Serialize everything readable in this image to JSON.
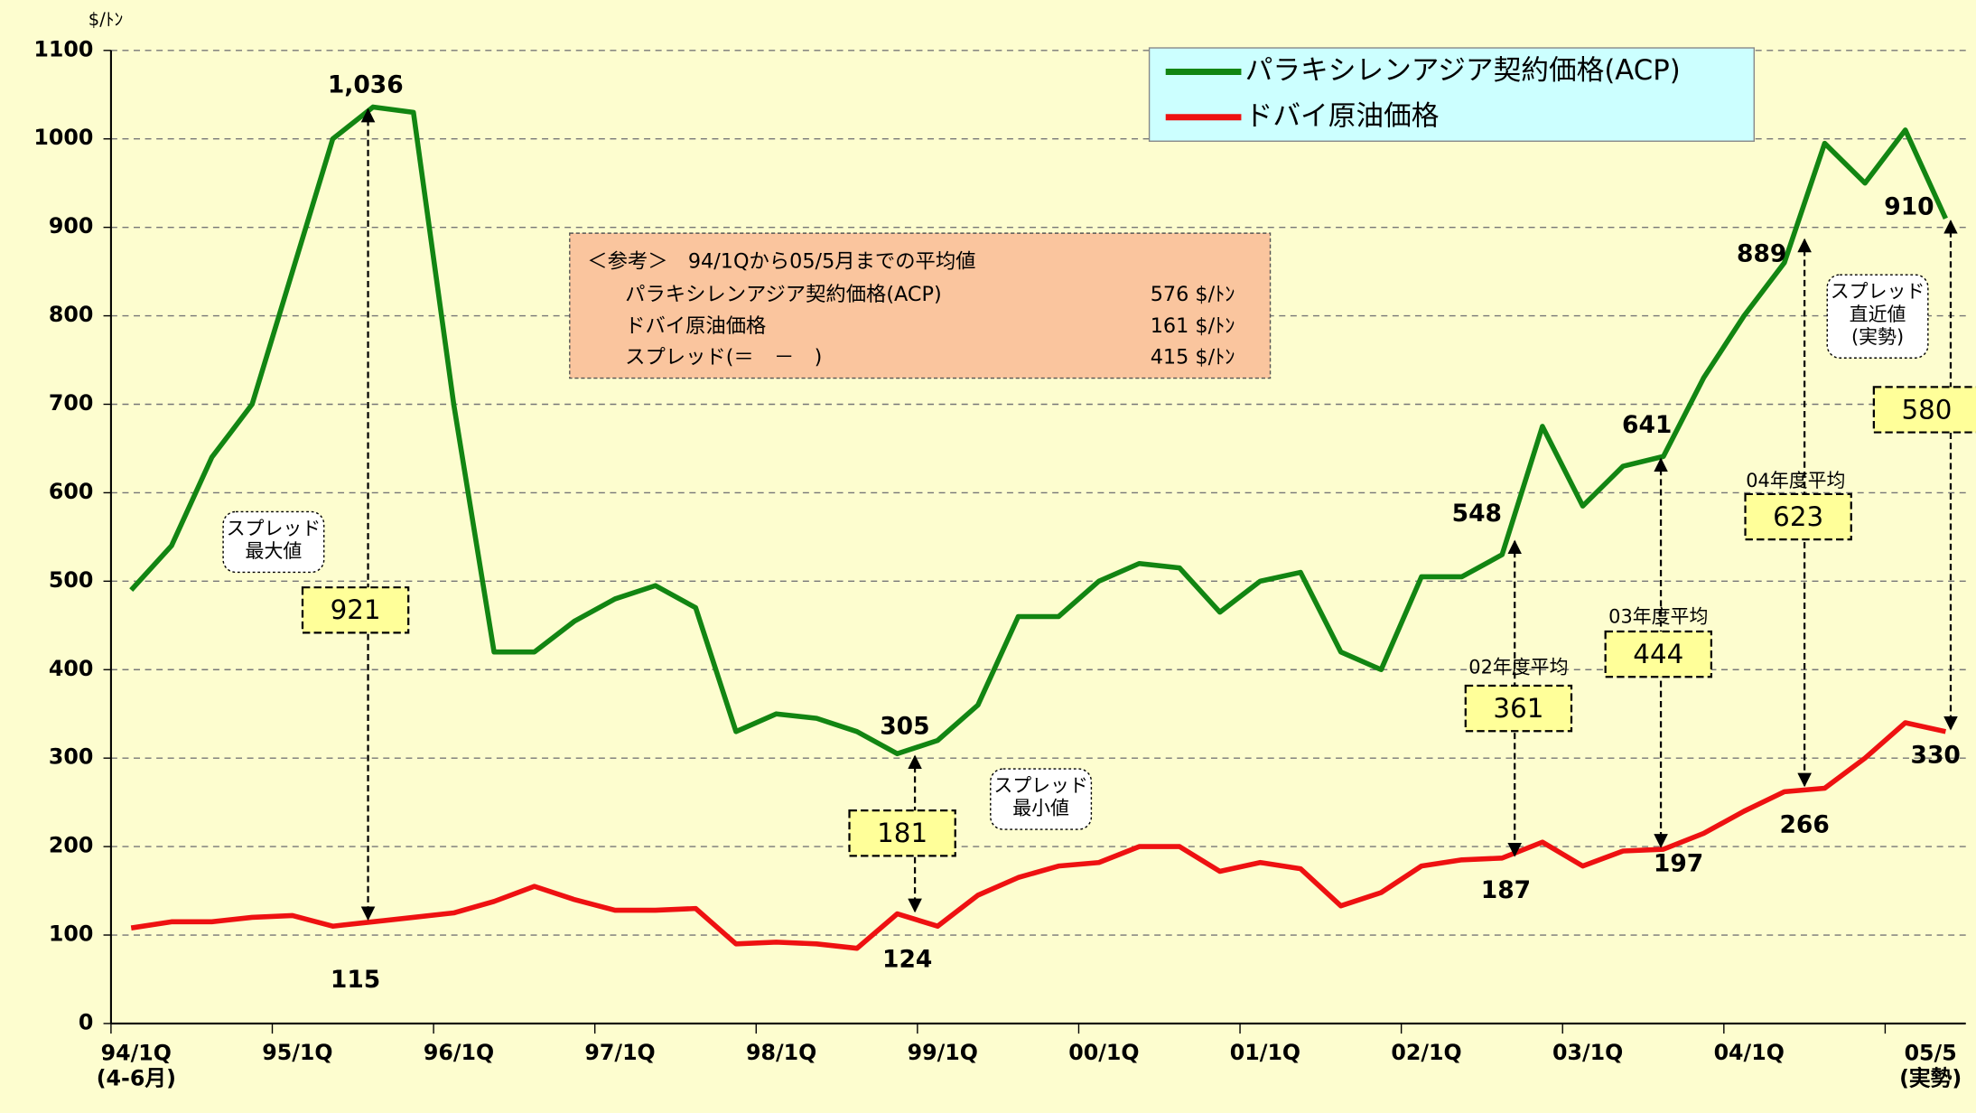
{
  "chart_data": {
    "type": "line",
    "y_unit": "$/ﾄﾝ",
    "categories": [
      "94/1Q\n(4-6月)",
      null,
      null,
      null,
      "95/1Q",
      null,
      null,
      null,
      "96/1Q",
      null,
      null,
      null,
      "97/1Q",
      null,
      null,
      null,
      "98/1Q",
      null,
      null,
      null,
      "99/1Q",
      null,
      null,
      null,
      "00/1Q",
      null,
      null,
      null,
      "01/1Q",
      null,
      null,
      null,
      "02/1Q",
      null,
      null,
      null,
      "03/1Q",
      null,
      null,
      null,
      "04/1Q",
      null,
      null,
      null,
      null,
      "05/5\n(実勢)"
    ],
    "series": [
      {
        "name": "パラキシレンアジア契約価格(ACP)",
        "color": "#128512",
        "values": [
          490,
          540,
          640,
          700,
          850,
          1000,
          1036,
          1030,
          700,
          420,
          420,
          455,
          480,
          495,
          470,
          330,
          350,
          345,
          330,
          305,
          320,
          360,
          460,
          460,
          500,
          520,
          515,
          465,
          500,
          510,
          420,
          400,
          505,
          505,
          530,
          675,
          585,
          630,
          641,
          730,
          800,
          860,
          995,
          950,
          1010,
          910
        ]
      },
      {
        "name": "ドバイ原油価格",
        "color": "#ee1111",
        "values": [
          108,
          115,
          115,
          120,
          122,
          110,
          115,
          120,
          125,
          138,
          155,
          140,
          128,
          128,
          130,
          90,
          92,
          90,
          85,
          124,
          110,
          145,
          165,
          178,
          182,
          200,
          200,
          172,
          182,
          175,
          133,
          148,
          178,
          185,
          187,
          205,
          178,
          195,
          197,
          215,
          240,
          262,
          266,
          300,
          340,
          330
        ]
      }
    ],
    "ylim": [
      0,
      1100
    ],
    "yticks": [
      0,
      100,
      200,
      300,
      400,
      500,
      600,
      700,
      800,
      900,
      1000,
      1100
    ],
    "grid": true,
    "value_labels": [
      "1,036",
      "115",
      "305",
      "124",
      "548",
      "187",
      "641",
      "197",
      "889",
      "266",
      "910",
      "330"
    ],
    "spread_labels": [
      "921",
      "181",
      "361",
      "444",
      "623",
      "580"
    ],
    "captions": [
      "スプレッド\n最大値",
      "スプレッド\n最小値",
      "02年度平均",
      "03年度平均",
      "04年度平均",
      "スプレッド\n直近値\n(実勢)"
    ],
    "reference": {
      "heading": "＜参考＞　94/1Qから05/5月までの平均値",
      "rows": [
        [
          "パラキシレンアジア契約価格(ACP)",
          "576 $/ﾄﾝ"
        ],
        [
          "ドバイ原油価格",
          "161 $/ﾄﾝ"
        ],
        [
          "スプレッド(＝　－　)",
          "415 $/ﾄﾝ"
        ]
      ]
    }
  }
}
